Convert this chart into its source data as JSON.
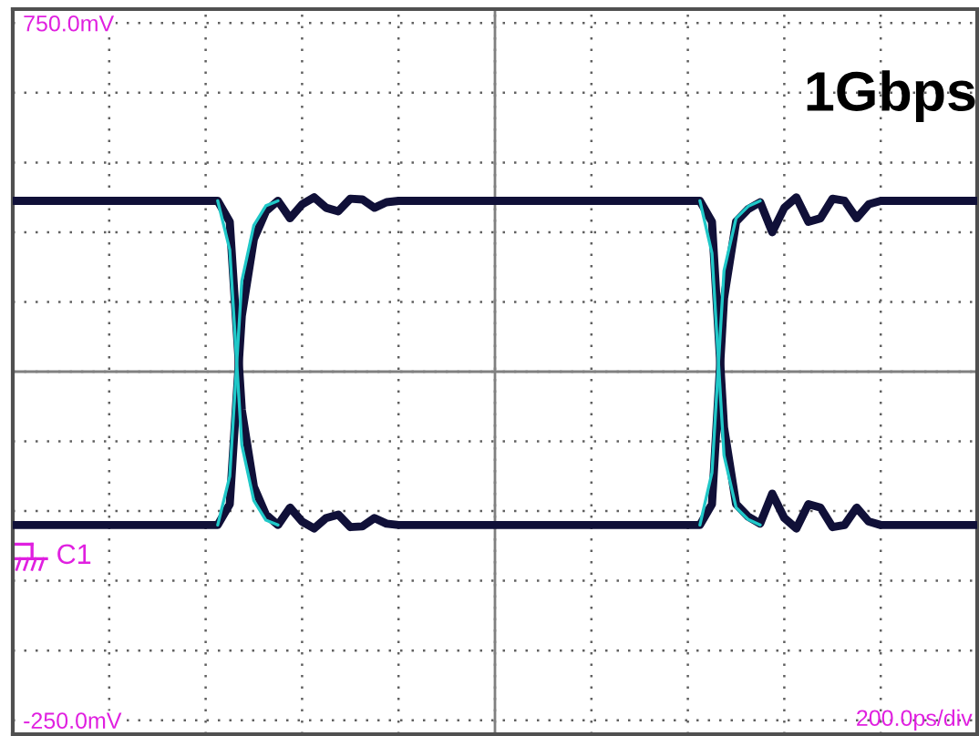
{
  "chart_data": {
    "type": "line",
    "title": "1Gbps",
    "categories": [
      null,
      null,
      null,
      null,
      null,
      null,
      null,
      null,
      null,
      null,
      null,
      null,
      null,
      null,
      null,
      null,
      null,
      null,
      null,
      null,
      null,
      null,
      null,
      null,
      null,
      null,
      null,
      null,
      null,
      null,
      null,
      null,
      null,
      null,
      null,
      null,
      null,
      null,
      null,
      null,
      null,
      null,
      null,
      null,
      null,
      null,
      null,
      null,
      null,
      null,
      null,
      null,
      null,
      null,
      null,
      null,
      null,
      null,
      null,
      null,
      null,
      null,
      null,
      null,
      null,
      null,
      null,
      null,
      null,
      null,
      null,
      null,
      null,
      null,
      null,
      null,
      null,
      null,
      null,
      null,
      null
    ],
    "ylim": [
      -270,
      770
    ],
    "yticks": [
      {
        "value": -250,
        "label": "-250.0mV"
      },
      {
        "value": -150,
        "label": null
      },
      {
        "value": -50,
        "label": null
      },
      {
        "value": 50,
        "label": null
      },
      {
        "value": 150,
        "label": null
      },
      {
        "value": 250,
        "label": null
      },
      {
        "value": 350,
        "label": null
      },
      {
        "value": 450,
        "label": null
      },
      {
        "value": 550,
        "label": null
      },
      {
        "value": 650,
        "label": null
      },
      {
        "value": 750,
        "label": "750.0mV"
      }
    ],
    "tick_labels": "y",
    "grid": true,
    "legend": false,
    "marker": "none",
    "line_style": "solid",
    "annotations": [
      "C1",
      "200.0ps/div"
    ],
    "series": [
      {
        "color": "#101038",
        "values": [
          30,
          30,
          30,
          30,
          30,
          30,
          30,
          30,
          30,
          30,
          30,
          30,
          30,
          30,
          30,
          30,
          30,
          30,
          60,
          330,
          440,
          480,
          495,
          470,
          490,
          500,
          485,
          480,
          498,
          497,
          485,
          493,
          495,
          495,
          495,
          495,
          495,
          495,
          495,
          495,
          495,
          495,
          495,
          495,
          495,
          495,
          495,
          495,
          495,
          495,
          495,
          495,
          495,
          495,
          495,
          495,
          495,
          495,
          465,
          170,
          60,
          42,
          32,
          75,
          40,
          25,
          60,
          55,
          27,
          30,
          55,
          35,
          30,
          30,
          30,
          30,
          30,
          30,
          30,
          30,
          30
        ]
      },
      {
        "color": "#101038",
        "values": [
          495,
          495,
          495,
          495,
          495,
          495,
          495,
          495,
          495,
          495,
          495,
          495,
          495,
          495,
          495,
          495,
          495,
          495,
          465,
          195,
          85,
          45,
          30,
          55,
          35,
          25,
          40,
          45,
          27,
          28,
          40,
          32,
          30,
          30,
          30,
          30,
          30,
          30,
          30,
          30,
          30,
          30,
          30,
          30,
          30,
          30,
          30,
          30,
          30,
          30,
          30,
          30,
          30,
          30,
          30,
          30,
          30,
          30,
          60,
          355,
          465,
          483,
          493,
          450,
          485,
          500,
          465,
          470,
          498,
          495,
          470,
          490,
          495,
          495,
          495,
          495,
          495,
          495,
          495,
          495,
          495
        ]
      },
      {
        "color": "#20c8c8",
        "values": [
          null,
          null,
          null,
          null,
          null,
          null,
          null,
          null,
          null,
          null,
          null,
          null,
          null,
          null,
          null,
          null,
          null,
          30,
          100,
          380,
          460,
          488,
          495,
          null,
          null,
          null,
          null,
          null,
          null,
          null,
          null,
          null,
          null,
          null,
          null,
          null,
          null,
          null,
          null,
          null,
          null,
          null,
          null,
          null,
          null,
          null,
          null,
          null,
          null,
          null,
          null,
          null,
          null,
          null,
          null,
          null,
          null,
          495,
          420,
          130,
          55,
          38,
          30,
          null,
          null,
          null,
          null,
          null,
          null,
          null,
          null,
          null,
          null,
          null,
          null,
          null,
          null,
          null,
          null,
          null,
          null
        ]
      },
      {
        "color": "#20c8c8",
        "values": [
          null,
          null,
          null,
          null,
          null,
          null,
          null,
          null,
          null,
          null,
          null,
          null,
          null,
          null,
          null,
          null,
          null,
          495,
          425,
          145,
          65,
          37,
          30,
          null,
          null,
          null,
          null,
          null,
          null,
          null,
          null,
          null,
          null,
          null,
          null,
          null,
          null,
          null,
          null,
          null,
          null,
          null,
          null,
          null,
          null,
          null,
          null,
          null,
          null,
          null,
          null,
          null,
          null,
          null,
          null,
          null,
          null,
          30,
          105,
          395,
          470,
          487,
          495,
          null,
          null,
          null,
          null,
          null,
          null,
          null,
          null,
          null,
          null,
          null,
          null,
          null,
          null,
          null,
          null,
          null,
          null
        ]
      }
    ]
  }
}
